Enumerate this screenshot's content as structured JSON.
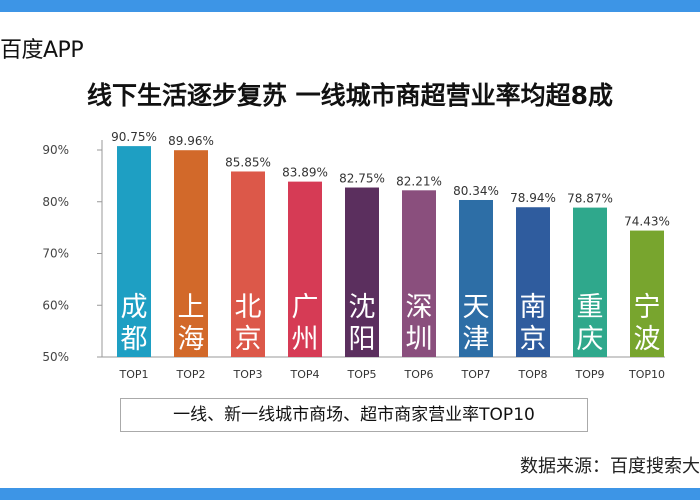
{
  "header": {
    "app_name": "百度APP",
    "headline": "线下生活逐步复苏 一线城市商超营业率均超8成"
  },
  "caption": "一线、新一线城市商场、超市商家营业率TOP10",
  "source": "数据来源：百度搜索大",
  "chart_data": {
    "type": "bar",
    "categories": [
      "TOP1",
      "TOP2",
      "TOP3",
      "TOP4",
      "TOP5",
      "TOP6",
      "TOP7",
      "TOP8",
      "TOP9",
      "TOP10"
    ],
    "cities": [
      "成都",
      "上海",
      "北京",
      "广州",
      "沈阳",
      "深圳",
      "天津",
      "南京",
      "重庆",
      "宁波"
    ],
    "values": [
      90.75,
      89.96,
      85.85,
      83.89,
      82.75,
      82.21,
      80.34,
      78.94,
      78.87,
      74.43
    ],
    "value_labels": [
      "90.75%",
      "89.96%",
      "85.85%",
      "83.89%",
      "82.75%",
      "82.21%",
      "80.34%",
      "78.94%",
      "78.87%",
      "74.43%"
    ],
    "yticks": [
      "50%",
      "60%",
      "70%",
      "80%",
      "90%"
    ],
    "ylim": [
      50,
      92
    ],
    "colors": [
      "#1e9fc3",
      "#d2692a",
      "#dc5849",
      "#d63b55",
      "#5b2f5e",
      "#8a4f7d",
      "#2d6ea6",
      "#2f5c9e",
      "#2fa88c",
      "#78a52e"
    ],
    "grid": false
  }
}
